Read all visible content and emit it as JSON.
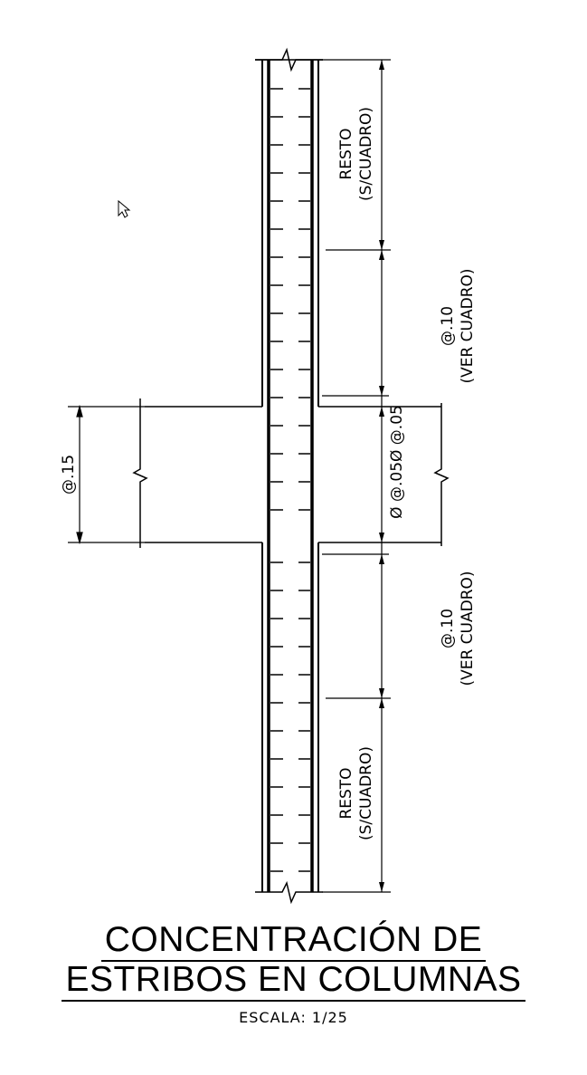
{
  "labels": {
    "resto_top": "RESTO",
    "resto_top_sub": "(S/CUADRO)",
    "resto_bottom": "RESTO",
    "resto_bottom_sub": "(S/CUADRO)",
    "spacing_upper": "@.10",
    "spacing_upper_sub": "(VER CUADRO)",
    "spacing_lower": "@.10",
    "spacing_lower_sub": "(VER CUADRO)",
    "beam_spacing": "@.15",
    "node_spacing": "Ø @.05Ø @.05"
  },
  "title": {
    "line1": "CONCENTRACIÓN DE",
    "line2": "ESTRIBOS EN COLUMNAS",
    "scale": "ESCALA:  1/25"
  }
}
